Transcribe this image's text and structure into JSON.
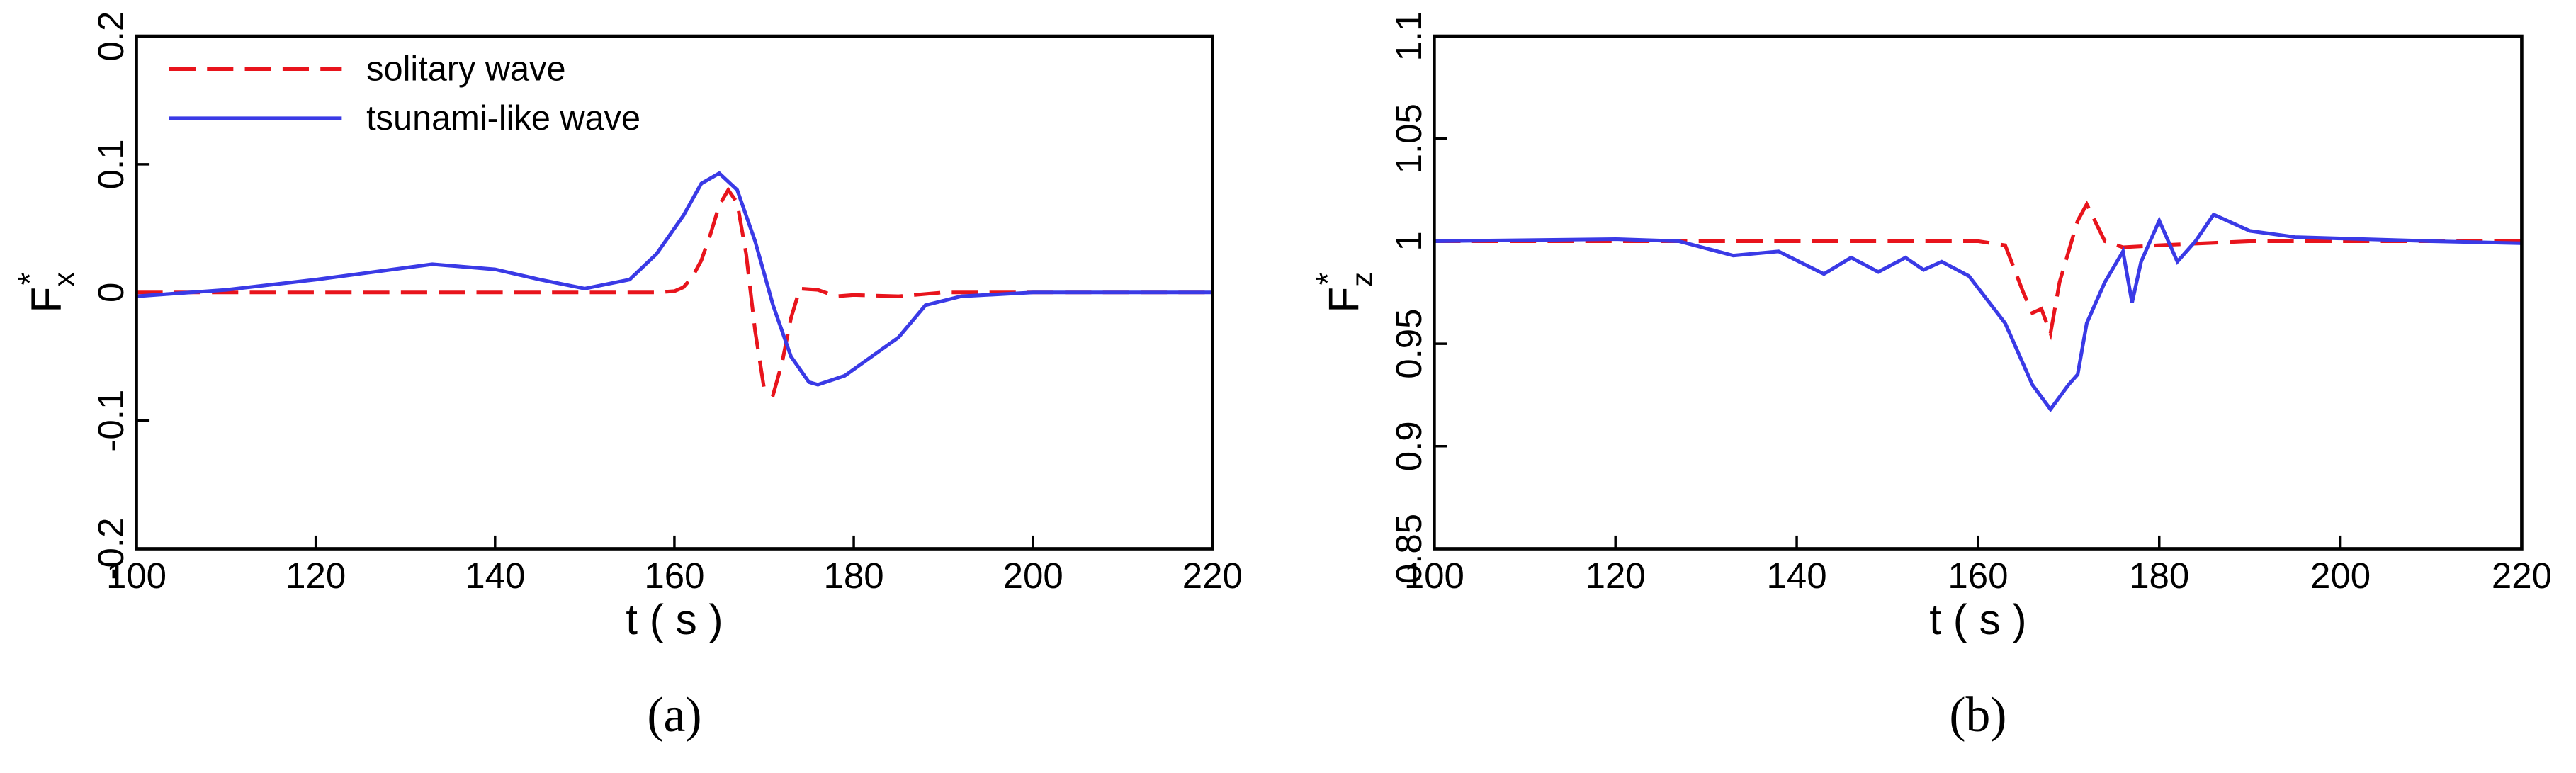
{
  "chart_data": [
    {
      "type": "line",
      "caption": "(a)",
      "xlabel": "t ( s )",
      "ylabel": "F",
      "ylabel_sub": "x",
      "ylabel_sup": "*",
      "xlim": [
        100,
        220
      ],
      "xticks": [
        100,
        120,
        140,
        160,
        180,
        200,
        220
      ],
      "ylim": [
        -0.2,
        0.2
      ],
      "yticks": [
        -0.2,
        -0.1,
        0,
        0.1,
        0.2
      ],
      "legend": "upper left",
      "series": [
        {
          "name": "solitary wave",
          "color": "#e8141c",
          "dash": true,
          "x": [
            100,
            110,
            120,
            130,
            140,
            150,
            155,
            158,
            160,
            161,
            162,
            163,
            164,
            165,
            166,
            167,
            168,
            169,
            170,
            171,
            172,
            173,
            174,
            176,
            178,
            180,
            185,
            190,
            200,
            210,
            220
          ],
          "values": [
            0,
            0,
            0,
            0,
            0,
            0,
            0,
            0,
            0.001,
            0.004,
            0.012,
            0.025,
            0.045,
            0.068,
            0.08,
            0.07,
            0.03,
            -0.03,
            -0.075,
            -0.08,
            -0.055,
            -0.02,
            0.003,
            0.002,
            -0.003,
            -0.002,
            -0.003,
            0,
            0,
            0,
            0
          ]
        },
        {
          "name": "tsunami-like wave",
          "color": "#3a3ae6",
          "dash": false,
          "x": [
            100,
            110,
            120,
            133,
            140,
            145,
            150,
            155,
            158,
            161,
            163,
            165,
            167,
            169,
            171,
            173,
            175,
            176,
            179,
            182,
            185,
            188,
            192,
            200,
            220
          ],
          "values": [
            -0.003,
            0.002,
            0.01,
            0.022,
            0.018,
            0.01,
            0.003,
            0.01,
            0.03,
            0.06,
            0.085,
            0.093,
            0.08,
            0.04,
            -0.01,
            -0.05,
            -0.07,
            -0.072,
            -0.065,
            -0.05,
            -0.035,
            -0.01,
            -0.003,
            0,
            0
          ]
        }
      ]
    },
    {
      "type": "line",
      "caption": "(b)",
      "xlabel": "t ( s )",
      "ylabel": "F",
      "ylabel_sub": "z",
      "ylabel_sup": "*",
      "xlim": [
        100,
        220
      ],
      "xticks": [
        100,
        120,
        140,
        160,
        180,
        200,
        220
      ],
      "ylim": [
        0.85,
        1.1
      ],
      "yticks": [
        0.85,
        0.9,
        0.95,
        1,
        1.05,
        1.1
      ],
      "series": [
        {
          "name": "solitary wave",
          "color": "#e8141c",
          "dash": true,
          "x": [
            100,
            120,
            140,
            160,
            163,
            165,
            166,
            167,
            168,
            169,
            170,
            171,
            172,
            174,
            176,
            180,
            190,
            200,
            220
          ],
          "values": [
            1,
            1,
            1,
            1,
            0.998,
            0.975,
            0.965,
            0.967,
            0.955,
            0.98,
            0.995,
            1.01,
            1.018,
            1.0,
            0.997,
            0.998,
            1,
            1,
            1
          ]
        },
        {
          "name": "tsunami-like wave",
          "color": "#3a3ae6",
          "dash": false,
          "x": [
            100,
            120,
            127,
            133,
            138,
            143,
            146,
            149,
            152,
            154,
            156,
            159,
            163,
            166,
            168,
            170,
            171,
            172,
            174,
            176,
            177,
            178,
            180,
            182,
            184,
            186,
            190,
            195,
            210,
            220
          ],
          "values": [
            1,
            1.001,
            1.0,
            0.993,
            0.995,
            0.984,
            0.992,
            0.985,
            0.992,
            0.986,
            0.99,
            0.983,
            0.96,
            0.93,
            0.918,
            0.93,
            0.935,
            0.96,
            0.98,
            0.995,
            0.97,
            0.99,
            1.01,
            0.99,
            1.0,
            1.013,
            1.005,
            1.002,
            1.0,
            0.999
          ]
        }
      ]
    }
  ]
}
